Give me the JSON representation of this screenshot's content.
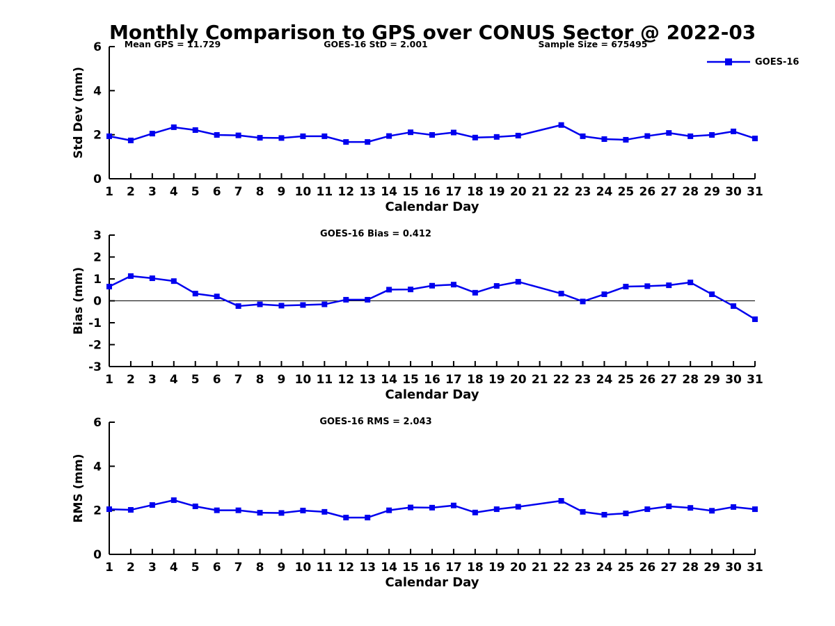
{
  "title": "Monthly Comparison to GPS over CONUS Sector @ 2022-03",
  "annotations": {
    "mean_gps": "Mean GPS = 11.729",
    "std": "GOES-16 StD = 2.001",
    "sample_size": "Sample Size = 675495"
  },
  "legend": {
    "label": "GOES-16"
  },
  "colors": {
    "line": "#0000EE",
    "axis": "#000000",
    "background": "#FFFFFF"
  },
  "chart_data": [
    {
      "type": "line",
      "name": "std-dev",
      "subtitle": "",
      "xlabel": "Calendar Day",
      "ylabel": "Std Dev (mm)",
      "xlim": [
        1,
        31
      ],
      "ylim": [
        0,
        6
      ],
      "yticks": [
        0,
        2,
        4,
        6
      ],
      "grid": false,
      "zero_line": false,
      "x": [
        1,
        2,
        3,
        4,
        5,
        6,
        7,
        8,
        9,
        10,
        11,
        12,
        13,
        14,
        15,
        16,
        17,
        18,
        19,
        20,
        21,
        22,
        23,
        24,
        25,
        26,
        27,
        28,
        29,
        30,
        31
      ],
      "series": [
        {
          "name": "GOES-16",
          "values": [
            1.93,
            1.74,
            2.05,
            2.34,
            2.21,
            1.99,
            1.97,
            1.86,
            1.85,
            1.93,
            1.93,
            1.67,
            1.67,
            1.94,
            2.11,
            1.99,
            2.1,
            1.87,
            1.9,
            1.96,
            null,
            2.44,
            1.93,
            1.8,
            1.77,
            1.94,
            2.08,
            1.93,
            1.99,
            2.15,
            1.83
          ]
        }
      ]
    },
    {
      "type": "line",
      "name": "bias",
      "subtitle": "GOES-16 Bias = 0.412",
      "xlabel": "Calendar Day",
      "ylabel": "Bias (mm)",
      "xlim": [
        1,
        31
      ],
      "ylim": [
        -3,
        3
      ],
      "yticks": [
        -3,
        -2,
        -1,
        0,
        1,
        2,
        3
      ],
      "grid": false,
      "zero_line": true,
      "x": [
        1,
        2,
        3,
        4,
        5,
        6,
        7,
        8,
        9,
        10,
        11,
        12,
        13,
        14,
        15,
        16,
        17,
        18,
        19,
        20,
        21,
        22,
        23,
        24,
        25,
        26,
        27,
        28,
        29,
        30,
        31
      ],
      "series": [
        {
          "name": "GOES-16",
          "values": [
            0.65,
            1.13,
            1.03,
            0.9,
            0.33,
            0.2,
            -0.24,
            -0.16,
            -0.22,
            -0.19,
            -0.16,
            0.05,
            0.05,
            0.51,
            0.52,
            0.69,
            0.74,
            0.37,
            0.68,
            0.87,
            null,
            0.33,
            -0.03,
            0.3,
            0.65,
            0.67,
            0.71,
            0.84,
            0.3,
            -0.24,
            -0.84
          ]
        }
      ]
    },
    {
      "type": "line",
      "name": "rms",
      "subtitle": "GOES-16 RMS = 2.043",
      "xlabel": "Calendar Day",
      "ylabel": "RMS (mm)",
      "xlim": [
        1,
        31
      ],
      "ylim": [
        0,
        6
      ],
      "yticks": [
        0,
        2,
        4,
        6
      ],
      "grid": false,
      "zero_line": false,
      "x": [
        1,
        2,
        3,
        4,
        5,
        6,
        7,
        8,
        9,
        10,
        11,
        12,
        13,
        14,
        15,
        16,
        17,
        18,
        19,
        20,
        21,
        22,
        23,
        24,
        25,
        26,
        27,
        28,
        29,
        30,
        31
      ],
      "series": [
        {
          "name": "GOES-16",
          "values": [
            2.05,
            2.02,
            2.24,
            2.46,
            2.18,
            2.0,
            2.0,
            1.89,
            1.88,
            1.99,
            1.93,
            1.67,
            1.67,
            2.0,
            2.13,
            2.12,
            2.22,
            1.9,
            2.05,
            2.16,
            null,
            2.43,
            1.93,
            1.8,
            1.86,
            2.05,
            2.18,
            2.11,
            1.98,
            2.15,
            2.05
          ]
        }
      ]
    }
  ]
}
